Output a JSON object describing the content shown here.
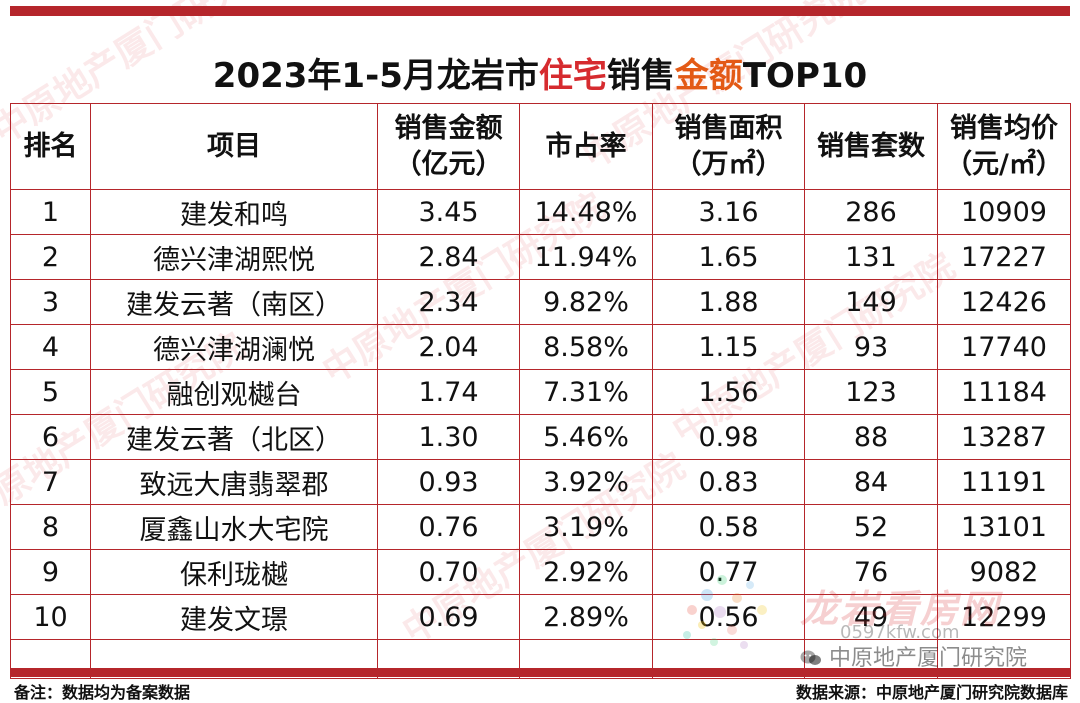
{
  "title": {
    "part1": "2023年1-5月龙岩市",
    "highlight1": "住宅",
    "part2": "销售",
    "highlight2": "金额",
    "part3": "TOP10"
  },
  "headers": [
    {
      "line1": "排名",
      "line2": ""
    },
    {
      "line1": "项目",
      "line2": ""
    },
    {
      "line1": "销售金额",
      "line2": "（亿元）"
    },
    {
      "line1": "市占率",
      "line2": ""
    },
    {
      "line1": "销售面积",
      "line2": "（万㎡）"
    },
    {
      "line1": "销售套数",
      "line2": ""
    },
    {
      "line1": "销售均价",
      "line2": "（元/㎡）"
    }
  ],
  "rows": [
    {
      "rank": "1",
      "project": "建发和鸣",
      "amount": "3.45",
      "share": "14.48%",
      "area": "3.16",
      "units": "286",
      "price": "10909"
    },
    {
      "rank": "2",
      "project": "德兴津湖熙悦",
      "amount": "2.84",
      "share": "11.94%",
      "area": "1.65",
      "units": "131",
      "price": "17227"
    },
    {
      "rank": "3",
      "project": "建发云著（南区）",
      "amount": "2.34",
      "share": "9.82%",
      "area": "1.88",
      "units": "149",
      "price": "12426"
    },
    {
      "rank": "4",
      "project": "德兴津湖澜悦",
      "amount": "2.04",
      "share": "8.58%",
      "area": "1.15",
      "units": "93",
      "price": "17740"
    },
    {
      "rank": "5",
      "project": "融创观樾台",
      "amount": "1.74",
      "share": "7.31%",
      "area": "1.56",
      "units": "123",
      "price": "11184"
    },
    {
      "rank": "6",
      "project": "建发云著（北区）",
      "amount": "1.30",
      "share": "5.46%",
      "area": "0.98",
      "units": "88",
      "price": "13287"
    },
    {
      "rank": "7",
      "project": "致远大唐翡翠郡",
      "amount": "0.93",
      "share": "3.92%",
      "area": "0.83",
      "units": "84",
      "price": "11191"
    },
    {
      "rank": "8",
      "project": "厦鑫山水大宅院",
      "amount": "0.76",
      "share": "3.19%",
      "area": "0.58",
      "units": "52",
      "price": "13101"
    },
    {
      "rank": "9",
      "project": "保利珑樾",
      "amount": "0.70",
      "share": "2.92%",
      "area": "0.77",
      "units": "76",
      "price": "9082"
    },
    {
      "rank": "10",
      "project": "建发文璟",
      "amount": "0.69",
      "share": "2.89%",
      "area": "0.56",
      "units": "49",
      "price": "12299"
    }
  ],
  "footer": {
    "note": "备注：数据均为备案数据",
    "source": "数据来源：中原地产厦门研究院数据库"
  },
  "watermark": {
    "text": "中原地产厦门研究院",
    "logo": "龙岩看房网",
    "url": "0597kfw.com",
    "wechat": "中原地产厦门研究院"
  },
  "colors": {
    "accent": "#b5262b",
    "title_highlight_red": "#d62b2f",
    "title_highlight_orange": "#e35a16"
  },
  "icons": {
    "wechat": "wechat-icon"
  }
}
